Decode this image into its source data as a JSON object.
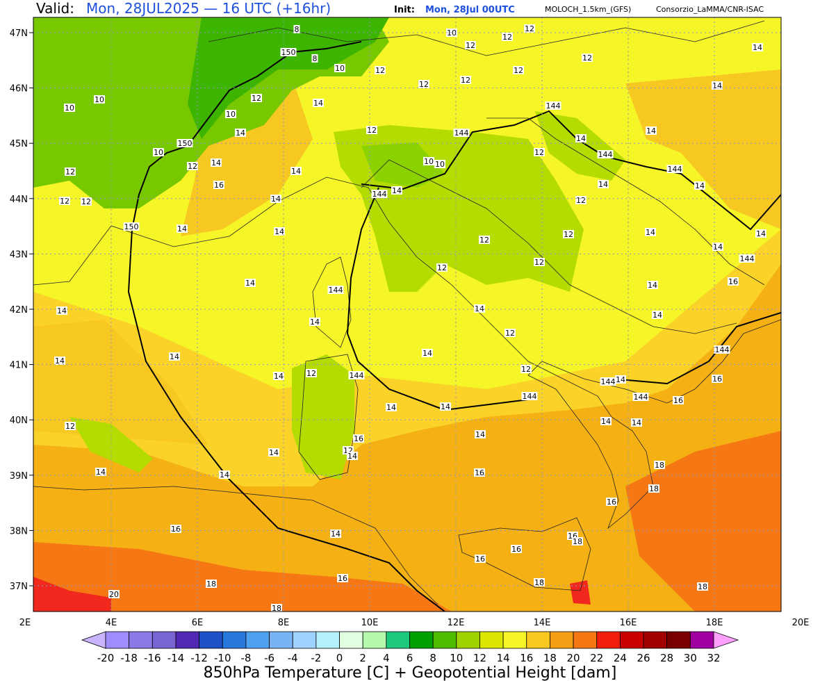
{
  "header": {
    "valid_label": "Valid:",
    "valid": "Mon, 28JUL2025 — 16 UTC (+16hr)",
    "init_label": "Init:",
    "init": "Mon, 28Jul 00UTC",
    "model": "MOLOCH_1.5km_(GFS)",
    "credit": "Consorzio_LaMMA/CNR-ISAC"
  },
  "map": {
    "lat_labels": [
      "47N",
      "46N",
      "45N",
      "44N",
      "43N",
      "42N",
      "41N",
      "40N",
      "39N",
      "38N",
      "37N"
    ],
    "lon_labels": [
      "2E",
      "4E",
      "6E",
      "8E",
      "10E",
      "12E",
      "14E",
      "16E",
      "18E",
      "20E"
    ],
    "contour_labels": [
      8,
      150,
      8,
      10,
      12,
      12,
      12,
      10,
      12,
      12,
      12,
      14,
      12,
      12,
      14,
      10,
      10,
      12,
      14,
      10,
      144,
      14,
      12,
      144,
      14,
      150,
      10,
      12,
      14,
      10,
      10,
      12,
      14,
      144,
      144,
      14,
      12,
      16,
      144,
      14,
      14,
      14,
      12,
      12,
      14,
      12,
      150,
      14,
      14,
      12,
      12,
      14,
      14,
      14,
      144,
      12,
      12,
      14,
      144,
      14,
      16,
      14,
      14,
      14,
      14,
      12,
      14,
      14,
      14,
      144,
      14,
      12,
      144,
      12,
      144,
      14,
      16,
      144,
      144,
      16,
      14,
      14,
      12,
      14,
      14,
      14,
      16,
      14,
      12,
      14,
      14,
      14,
      16,
      18,
      18,
      16,
      16,
      14,
      16,
      18,
      16,
      16,
      16,
      18,
      18,
      18,
      20,
      18
    ]
  },
  "colorbar": {
    "title": "850hPa Temperature [C] + Geopotential Height [dam]",
    "ticks": [
      -20,
      -18,
      -16,
      -14,
      -12,
      -10,
      -8,
      -6,
      -4,
      -2,
      0,
      2,
      4,
      6,
      8,
      10,
      12,
      14,
      16,
      18,
      20,
      22,
      24,
      26,
      28,
      30,
      32
    ],
    "colors": [
      "#c8b4ff",
      "#a08cff",
      "#8c78e6",
      "#7864d2",
      "#5028b4",
      "#1e50c8",
      "#2878dc",
      "#50a0f0",
      "#78b4f5",
      "#a0d2ff",
      "#b4f0fa",
      "#e1ffe1",
      "#b4faaa",
      "#1ec87c",
      "#00a000",
      "#50be00",
      "#a0d200",
      "#dce600",
      "#f5f528",
      "#fac81e",
      "#f5a014",
      "#f57814",
      "#f01e0a",
      "#c80000",
      "#a00000",
      "#780000",
      "#a000a0",
      "#ff00ff",
      "#ffa0ff"
    ]
  }
}
